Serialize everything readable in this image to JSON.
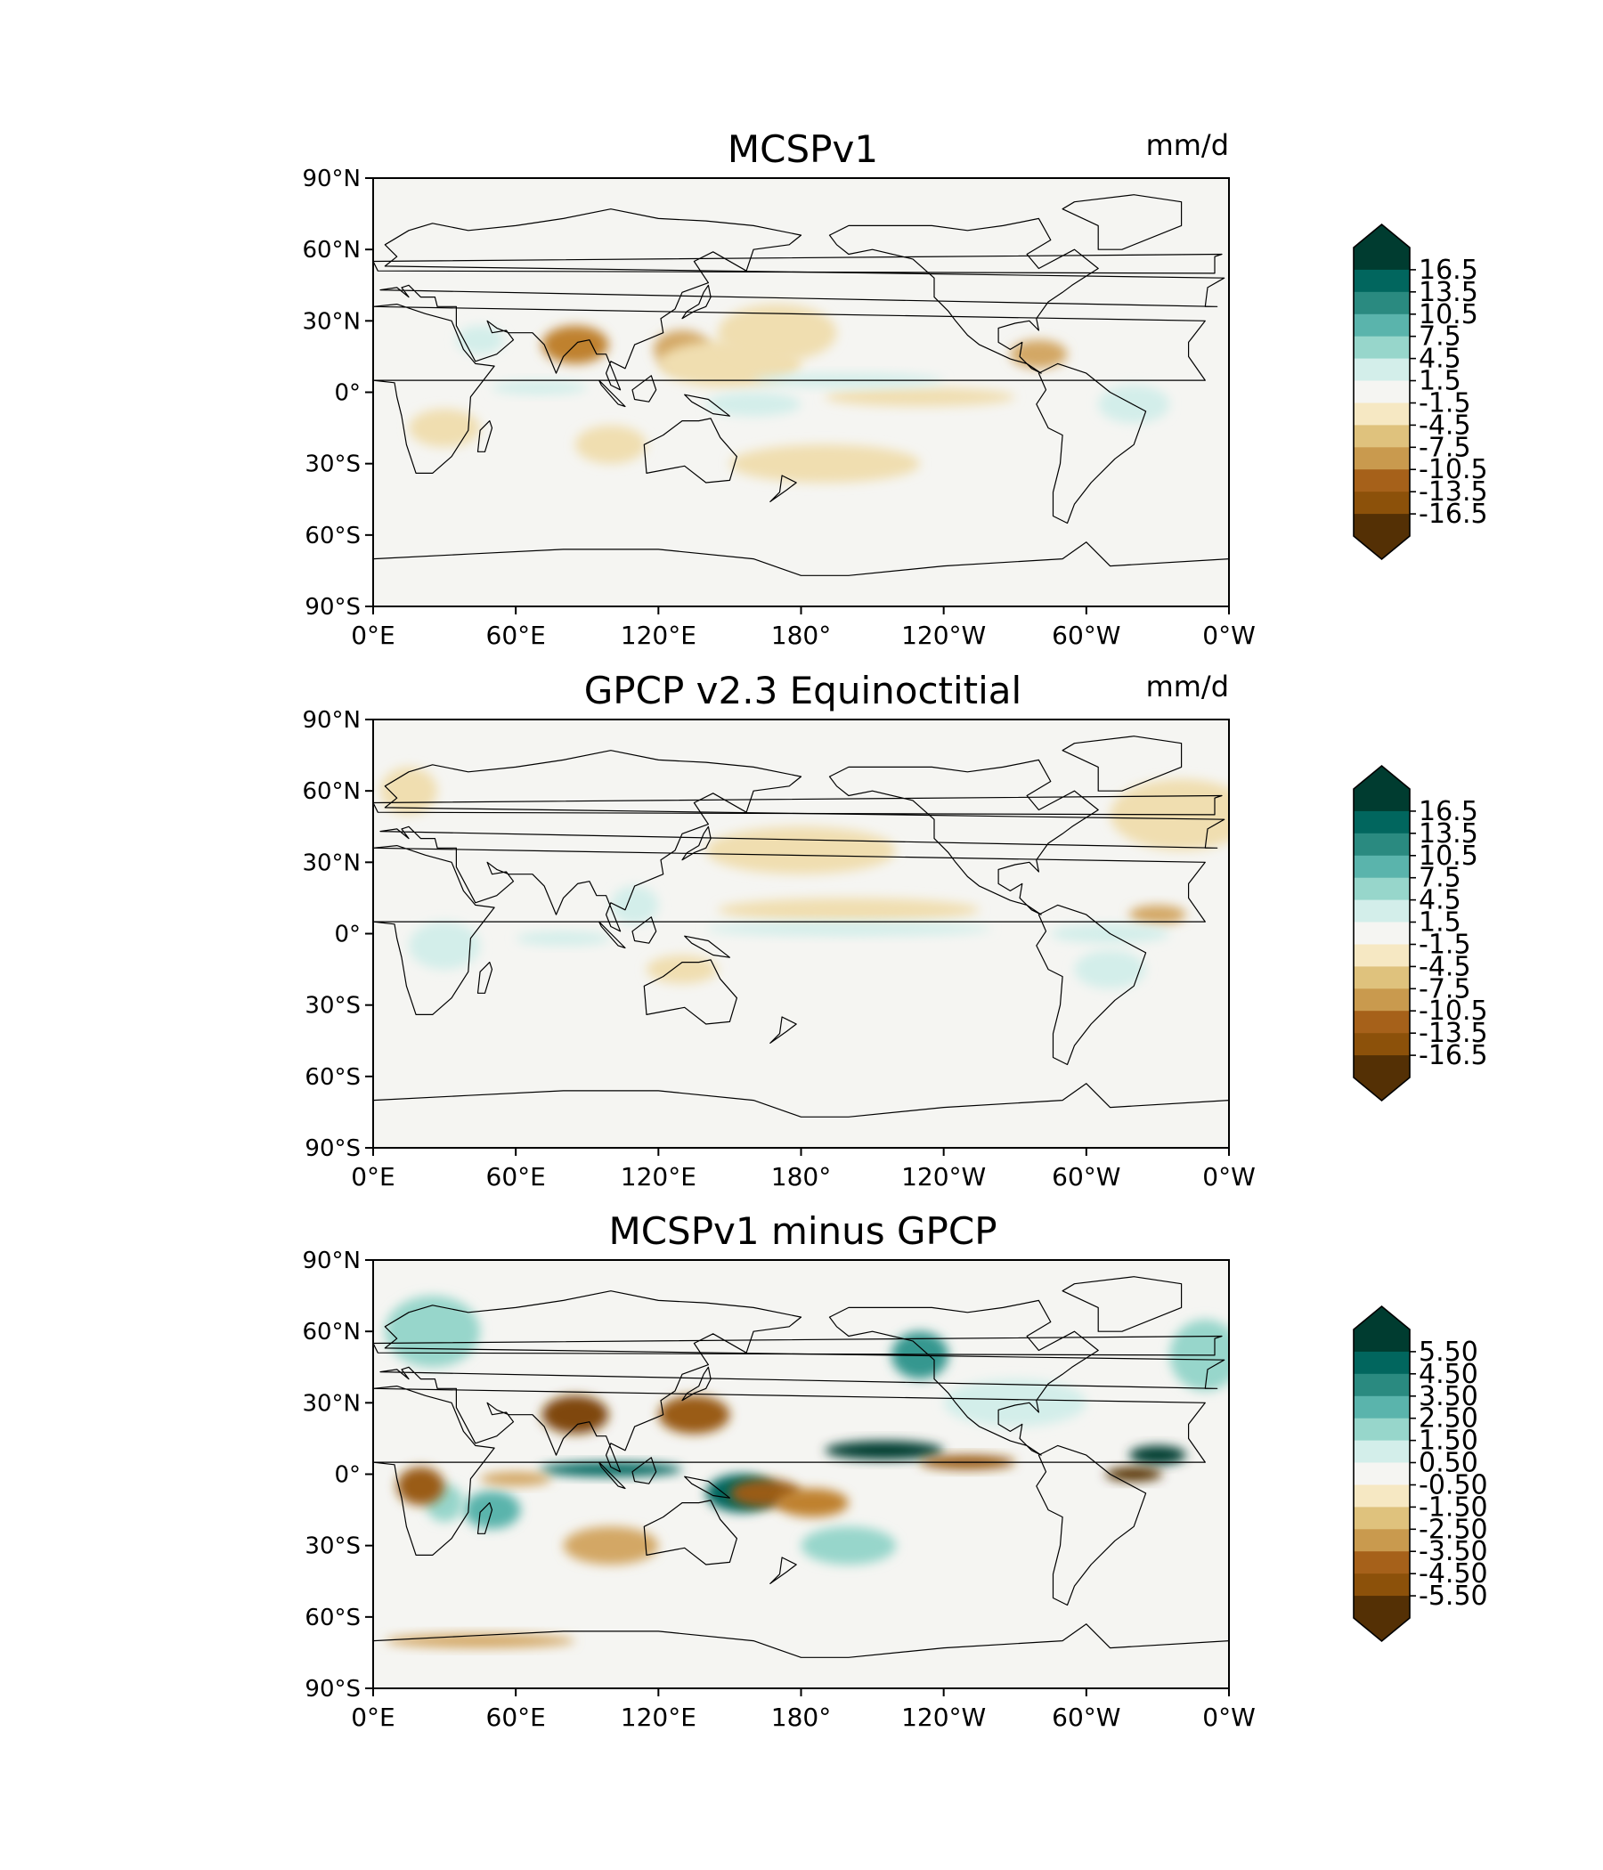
{
  "figure": {
    "panels": [
      {
        "title": "MCSPv1",
        "units": "mm/d",
        "colorbar": {
          "labels": [
            "16.5",
            "13.5",
            "10.5",
            "7.5",
            "4.5",
            "1.5",
            "-1.5",
            "-4.5",
            "-7.5",
            "-10.5",
            "-13.5",
            "-16.5"
          ]
        }
      },
      {
        "title": "GPCP v2.3 Equinoctitial",
        "units": "mm/d",
        "colorbar": {
          "labels": [
            "16.5",
            "13.5",
            "10.5",
            "7.5",
            "4.5",
            "1.5",
            "-1.5",
            "-4.5",
            "-7.5",
            "-10.5",
            "-13.5",
            "-16.5"
          ]
        }
      },
      {
        "title": "MCSPv1 minus GPCP",
        "units": "",
        "colorbar": {
          "labels": [
            "5.50",
            "4.50",
            "3.50",
            "2.50",
            "1.50",
            "0.50",
            "-0.50",
            "-1.50",
            "-2.50",
            "-3.50",
            "-4.50",
            "-5.50"
          ]
        }
      }
    ],
    "lat_ticks": [
      "90°N",
      "60°N",
      "30°N",
      "0°",
      "30°S",
      "60°S",
      "90°S"
    ],
    "lon_ticks": [
      "0°E",
      "60°E",
      "120°E",
      "180°",
      "120°W",
      "60°W",
      "0°W"
    ]
  },
  "chart_data": [
    {
      "type": "heatmap",
      "title": "MCSPv1",
      "units": "mm/d",
      "xlim": [
        0,
        360
      ],
      "ylim": [
        -90,
        90
      ],
      "levels": [
        -16.5,
        -13.5,
        -10.5,
        -7.5,
        -4.5,
        -1.5,
        1.5,
        4.5,
        7.5,
        10.5,
        13.5,
        16.5
      ],
      "features": [
        {
          "lon": 85,
          "lat": 20,
          "value": -8,
          "rlon": 14,
          "rlat": 8
        },
        {
          "lon": 130,
          "lat": 18,
          "value": -7,
          "rlon": 12,
          "rlat": 8
        },
        {
          "lon": 150,
          "lat": 12,
          "value": -3,
          "rlon": 30,
          "rlat": 10
        },
        {
          "lon": 170,
          "lat": 25,
          "value": -2.5,
          "rlon": 25,
          "rlat": 12
        },
        {
          "lon": 280,
          "lat": 16,
          "value": -5,
          "rlon": 12,
          "rlat": 6
        },
        {
          "lon": 230,
          "lat": -2,
          "value": -2,
          "rlon": 40,
          "rlat": 4
        },
        {
          "lon": 100,
          "lat": -22,
          "value": -3,
          "rlon": 15,
          "rlat": 8
        },
        {
          "lon": 30,
          "lat": -15,
          "value": -2,
          "rlon": 15,
          "rlat": 8
        },
        {
          "lon": 190,
          "lat": -30,
          "value": -2,
          "rlon": 40,
          "rlat": 8
        },
        {
          "lon": 200,
          "lat": 5,
          "value": 2.5,
          "rlon": 40,
          "rlat": 3
        },
        {
          "lon": 160,
          "lat": -5,
          "value": 3,
          "rlon": 20,
          "rlat": 5
        },
        {
          "lon": 70,
          "lat": 2,
          "value": 2,
          "rlon": 20,
          "rlat": 3
        },
        {
          "lon": 320,
          "lat": -5,
          "value": 2,
          "rlon": 15,
          "rlat": 8
        },
        {
          "lon": 45,
          "lat": 22,
          "value": 2,
          "rlon": 10,
          "rlat": 6
        }
      ]
    },
    {
      "type": "heatmap",
      "title": "GPCP v2.3 Equinoctitial",
      "units": "mm/d",
      "xlim": [
        0,
        360
      ],
      "ylim": [
        -90,
        90
      ],
      "levels": [
        -16.5,
        -13.5,
        -10.5,
        -7.5,
        -4.5,
        -1.5,
        1.5,
        4.5,
        7.5,
        10.5,
        13.5,
        16.5
      ],
      "features": [
        {
          "lon": 200,
          "lat": 10,
          "value": -4,
          "rlon": 55,
          "rlat": 5
        },
        {
          "lon": 330,
          "lat": 8,
          "value": -7,
          "rlon": 12,
          "rlat": 4
        },
        {
          "lon": 180,
          "lat": 35,
          "value": -2,
          "rlon": 40,
          "rlat": 10
        },
        {
          "lon": 340,
          "lat": 50,
          "value": -2.5,
          "rlon": 30,
          "rlat": 15
        },
        {
          "lon": 15,
          "lat": 60,
          "value": -2,
          "rlon": 12,
          "rlat": 10
        },
        {
          "lon": 130,
          "lat": -15,
          "value": -2,
          "rlon": 15,
          "rlat": 6
        },
        {
          "lon": 110,
          "lat": 12,
          "value": 3,
          "rlon": 10,
          "rlat": 8
        },
        {
          "lon": 200,
          "lat": 2,
          "value": 2.5,
          "rlon": 60,
          "rlat": 3
        },
        {
          "lon": 310,
          "lat": 0,
          "value": 4,
          "rlon": 25,
          "rlat": 4
        },
        {
          "lon": 30,
          "lat": -5,
          "value": 2,
          "rlon": 15,
          "rlat": 10
        },
        {
          "lon": 80,
          "lat": -2,
          "value": 2,
          "rlon": 20,
          "rlat": 3
        },
        {
          "lon": 310,
          "lat": -15,
          "value": 2,
          "rlon": 15,
          "rlat": 8
        }
      ]
    },
    {
      "type": "heatmap",
      "title": "MCSPv1 minus GPCP",
      "units": "",
      "xlim": [
        0,
        360
      ],
      "ylim": [
        -90,
        90
      ],
      "levels": [
        -5.5,
        -4.5,
        -3.5,
        -2.5,
        -1.5,
        -0.5,
        0.5,
        1.5,
        2.5,
        3.5,
        4.5,
        5.5
      ],
      "features": [
        {
          "lon": 215,
          "lat": 10,
          "value": 6,
          "rlon": 25,
          "rlat": 4
        },
        {
          "lon": 330,
          "lat": 8,
          "value": 6,
          "rlon": 12,
          "rlat": 4
        },
        {
          "lon": 100,
          "lat": 2,
          "value": 5,
          "rlon": 30,
          "rlat": 3
        },
        {
          "lon": 155,
          "lat": -8,
          "value": 5,
          "rlon": 15,
          "rlat": 8
        },
        {
          "lon": 50,
          "lat": -15,
          "value": 3,
          "rlon": 12,
          "rlat": 8
        },
        {
          "lon": 30,
          "lat": -12,
          "value": 2.5,
          "rlon": 8,
          "rlat": 8
        },
        {
          "lon": 230,
          "lat": 50,
          "value": 4,
          "rlon": 12,
          "rlat": 10
        },
        {
          "lon": 350,
          "lat": 50,
          "value": 2,
          "rlon": 15,
          "rlat": 15
        },
        {
          "lon": 25,
          "lat": 60,
          "value": 2,
          "rlon": 20,
          "rlat": 15
        },
        {
          "lon": 200,
          "lat": -30,
          "value": 2,
          "rlon": 20,
          "rlat": 8
        },
        {
          "lon": 270,
          "lat": 30,
          "value": 1.5,
          "rlon": 30,
          "rlat": 10
        },
        {
          "lon": 85,
          "lat": 25,
          "value": -5,
          "rlon": 14,
          "rlat": 8
        },
        {
          "lon": 135,
          "lat": 25,
          "value": -4,
          "rlon": 15,
          "rlat": 8
        },
        {
          "lon": 165,
          "lat": -8,
          "value": -3.5,
          "rlon": 15,
          "rlat": 6
        },
        {
          "lon": 185,
          "lat": -12,
          "value": -3,
          "rlon": 15,
          "rlat": 6
        },
        {
          "lon": 320,
          "lat": 0,
          "value": -6,
          "rlon": 12,
          "rlat": 3
        },
        {
          "lon": 250,
          "lat": 5,
          "value": -4,
          "rlon": 20,
          "rlat": 3
        },
        {
          "lon": 20,
          "lat": -5,
          "value": -4,
          "rlon": 10,
          "rlat": 8
        },
        {
          "lon": 60,
          "lat": -2,
          "value": -2,
          "rlon": 15,
          "rlat": 3
        },
        {
          "lon": 100,
          "lat": -30,
          "value": -1.5,
          "rlon": 20,
          "rlat": 8
        },
        {
          "lon": 45,
          "lat": -70,
          "value": -1.5,
          "rlon": 40,
          "rlat": 3
        }
      ]
    }
  ]
}
